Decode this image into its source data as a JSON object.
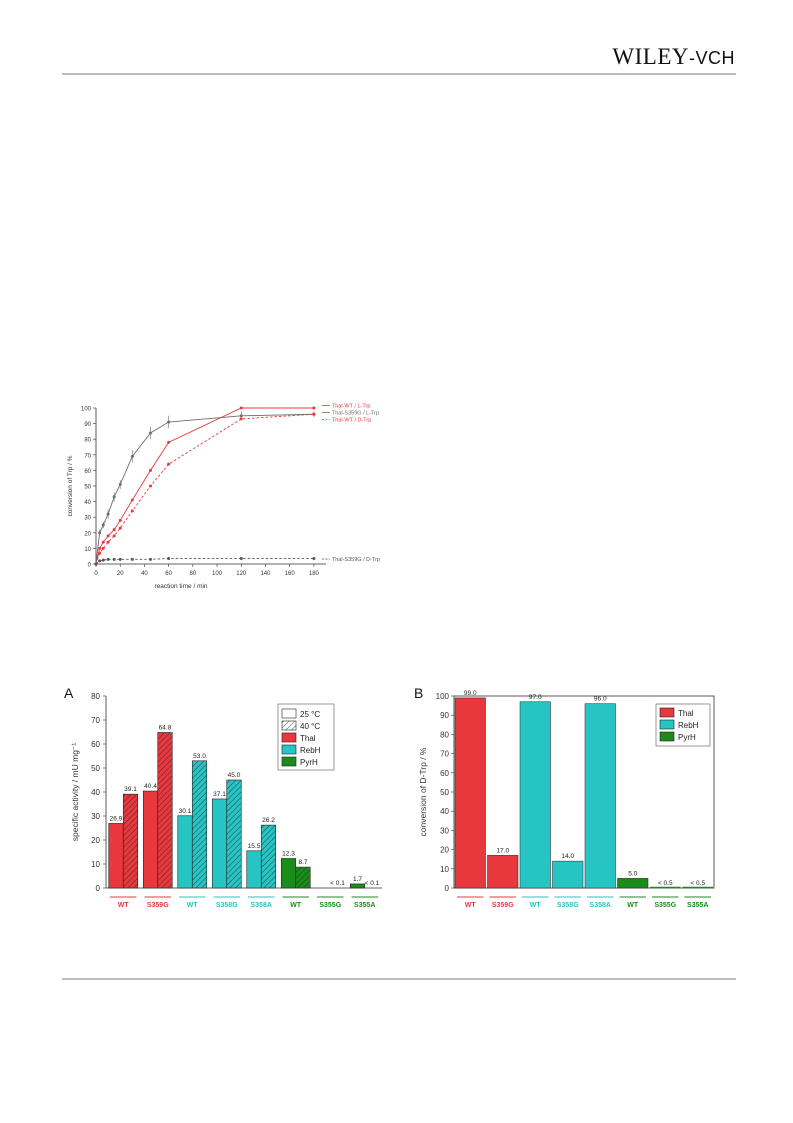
{
  "brand": {
    "name": "WILEY",
    "suffix": "-VCH"
  },
  "chart_data": [
    {
      "type": "line",
      "xlabel": "reaction time / min",
      "ylabel": "conversion of Trp / %",
      "xlim": [
        0,
        190
      ],
      "ylim": [
        0,
        100
      ],
      "x_ticks": [
        "0",
        "20",
        "40",
        "60",
        "80",
        "100",
        "120",
        "140",
        "160",
        "180"
      ],
      "y_ticks": [
        "0",
        "10",
        "20",
        "30",
        "40",
        "50",
        "60",
        "70",
        "80",
        "90",
        "100"
      ],
      "series": [
        {
          "name": "Thal-WT / L-Trp",
          "color": "#e8383d",
          "dashed": false,
          "x": [
            0,
            3,
            6,
            10,
            15,
            20,
            30,
            45,
            60,
            120,
            180
          ],
          "y": [
            0,
            10,
            14,
            18,
            22,
            28,
            41,
            60,
            78,
            100,
            100
          ]
        },
        {
          "name": "Thal-S359G / L-Trp",
          "color": "#6e6e6e",
          "dashed": false,
          "x": [
            0,
            3,
            6,
            10,
            15,
            20,
            30,
            45,
            60,
            120,
            180
          ],
          "y": [
            0,
            20,
            25,
            32,
            43,
            51,
            69,
            84,
            91,
            95,
            96
          ],
          "err": [
            0,
            2,
            2,
            3,
            3,
            3,
            4,
            4,
            4,
            3,
            2
          ]
        },
        {
          "name": "Thal-WT / D-Trp",
          "color": "#e8383d",
          "dashed": true,
          "x": [
            0,
            3,
            6,
            10,
            15,
            20,
            30,
            45,
            60,
            120,
            180
          ],
          "y": [
            0,
            7,
            10,
            14,
            18,
            23,
            34,
            50,
            64,
            93,
            96
          ]
        },
        {
          "name": "Thal-S359G / D-Trp",
          "color": "#555555",
          "dashed": true,
          "x": [
            0,
            3,
            6,
            10,
            15,
            20,
            30,
            45,
            60,
            120,
            180
          ],
          "y": [
            0,
            2,
            2.5,
            3,
            3,
            3,
            3,
            3,
            3.5,
            3.5,
            3.5
          ]
        }
      ]
    },
    {
      "type": "bar",
      "panel": "A",
      "ylabel": "specific activity / mU mg⁻¹",
      "ylim": [
        0,
        80
      ],
      "y_ticks": [
        "0",
        "10",
        "20",
        "30",
        "40",
        "50",
        "60",
        "70",
        "80"
      ],
      "legend": [
        "25 °C",
        "40 °C",
        "Thal",
        "RebH",
        "PyrH"
      ],
      "groups": [
        {
          "label": "WT",
          "enzyme": "Thal",
          "color": "#e8383d",
          "values": [
            26.9,
            39.1
          ],
          "labels": [
            "26.9",
            "39.1"
          ]
        },
        {
          "label": "S359G",
          "enzyme": "Thal",
          "color": "#e8383d",
          "values": [
            40.4,
            64.8
          ],
          "labels": [
            "40.4",
            "64.8"
          ]
        },
        {
          "label": "WT",
          "enzyme": "RebH",
          "color": "#27c4c4",
          "values": [
            30.1,
            53.0
          ],
          "labels": [
            "30.1",
            "53.0"
          ]
        },
        {
          "label": "S358G",
          "enzyme": "RebH",
          "color": "#27c4c4",
          "values": [
            37.1,
            45.0
          ],
          "labels": [
            "37.1",
            "45.0"
          ]
        },
        {
          "label": "S358A",
          "enzyme": "RebH",
          "color": "#27c4c4",
          "values": [
            15.5,
            26.2
          ],
          "labels": [
            "15.5",
            "26.2"
          ]
        },
        {
          "label": "WT",
          "enzyme": "PyrH",
          "color": "#1a8c1a",
          "values": [
            12.3,
            8.7
          ],
          "labels": [
            "12.3",
            "8.7"
          ]
        },
        {
          "label": "S355G",
          "enzyme": "PyrH",
          "color": "#1a8c1a",
          "values": [
            0,
            0
          ],
          "labels": [
            "",
            "< 0.1"
          ]
        },
        {
          "label": "S355A",
          "enzyme": "PyrH",
          "color": "#1a8c1a",
          "values": [
            1.7,
            0
          ],
          "labels": [
            "1.7",
            "< 0.1"
          ]
        }
      ]
    },
    {
      "type": "bar",
      "panel": "B",
      "ylabel": "conversion of D-Trp / %",
      "ylim": [
        0,
        100
      ],
      "y_ticks": [
        "0",
        "10",
        "20",
        "30",
        "40",
        "50",
        "60",
        "70",
        "80",
        "90",
        "100"
      ],
      "legend": [
        "Thal",
        "RebH",
        "PyrH"
      ],
      "bars": [
        {
          "label": "WT",
          "enzyme": "Thal",
          "color": "#e8383d",
          "value": 99.0,
          "text": "99.0"
        },
        {
          "label": "S359G",
          "enzyme": "Thal",
          "color": "#e8383d",
          "value": 17.0,
          "text": "17.0"
        },
        {
          "label": "WT",
          "enzyme": "RebH",
          "color": "#27c4c4",
          "value": 97.0,
          "text": "97.0"
        },
        {
          "label": "S358G",
          "enzyme": "RebH",
          "color": "#27c4c4",
          "value": 14.0,
          "text": "14.0"
        },
        {
          "label": "S358A",
          "enzyme": "RebH",
          "color": "#27c4c4",
          "value": 96.0,
          "text": "96.0"
        },
        {
          "label": "WT",
          "enzyme": "PyrH",
          "color": "#1a8c1a",
          "value": 5.0,
          "text": "5.0"
        },
        {
          "label": "S355G",
          "enzyme": "PyrH",
          "color": "#1a8c1a",
          "value": 0,
          "text": "< 0.5"
        },
        {
          "label": "S355A",
          "enzyme": "PyrH",
          "color": "#1a8c1a",
          "value": 0,
          "text": "< 0.5"
        }
      ]
    }
  ]
}
